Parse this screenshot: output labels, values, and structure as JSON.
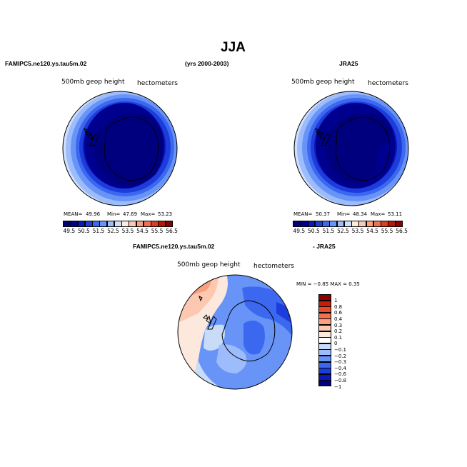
{
  "page": {
    "title": "JJA",
    "left_model": "FAMIPC5.ne120.ys.tau5m.02",
    "years": "(yrs 2000-2003)",
    "right_model": "JRA25",
    "diff_model": "FAMIPC5.ne120.ys.tau5m.02",
    "diff_ref": "- JRA25"
  },
  "panels": {
    "left": {
      "field": "500mb geop height",
      "units": "hectometers",
      "mean_label": "MEAN=",
      "mean": "49.96",
      "min_label": "Min=",
      "min": "47.69",
      "max_label": "Max=",
      "max": "53.23"
    },
    "right": {
      "field": "500mb geop height",
      "units": "hectometers",
      "mean_label": "MEAN=",
      "mean": "50.37",
      "min_label": "Min=",
      "min": "48.34",
      "max_label": "Max=",
      "max": "53.11"
    },
    "diff": {
      "field": "500mb geop height",
      "units": "hectometers",
      "minmax": "MIN =   −0.85  MAX =    0.35"
    }
  },
  "colorbar_main": {
    "colors": [
      "#00007f",
      "#00008f",
      "#0a18b8",
      "#1c3cdc",
      "#3c68f0",
      "#6894f8",
      "#9cbcfc",
      "#d0e0fc",
      "#fcece0",
      "#fcc8b0",
      "#f8a080",
      "#f07050",
      "#dc3c24",
      "#b81408",
      "#8c0000"
    ],
    "labels": [
      "49.5",
      "50.5",
      "51.5",
      "52.5",
      "53.5",
      "54.5",
      "55.5",
      "56.5"
    ]
  },
  "colorbar_diff": {
    "colors": [
      "#00007f",
      "#0a18b8",
      "#1c3cdc",
      "#3c68f0",
      "#6894f8",
      "#9cbcfc",
      "#c8dcf8",
      "#ffffff",
      "#fce8dc",
      "#fcc8b0",
      "#f8a080",
      "#f07050",
      "#e84a2c",
      "#c81c0c",
      "#8c0000"
    ],
    "labels": [
      "1",
      "0.8",
      "0.6",
      "0.4",
      "0.3",
      "0.2",
      "0.1",
      "0",
      "−0.1",
      "−0.2",
      "−0.3",
      "−0.4",
      "−0.6",
      "−0.8",
      "−1"
    ]
  }
}
